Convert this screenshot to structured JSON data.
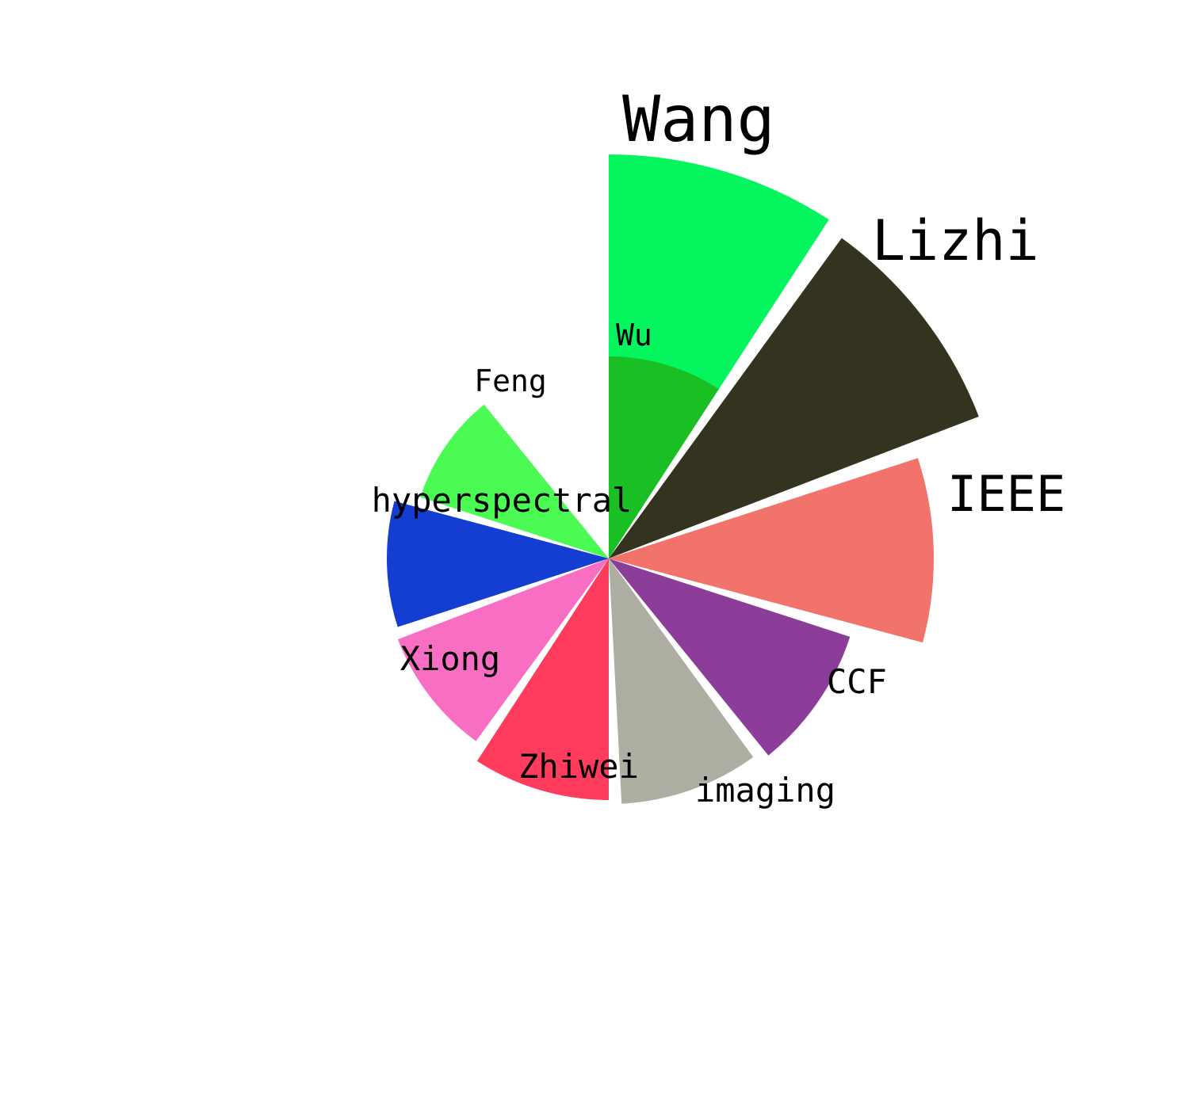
{
  "chart_data": {
    "type": "rose",
    "title": "",
    "direction": "clockwise",
    "start_angle_deg": 0,
    "radial_max": 510,
    "categories": [
      "Wang",
      "Lizhi",
      "IEEE",
      "CCF",
      "imaging",
      "Zhiwei",
      "Xiong",
      "hyperspectral",
      "Feng",
      "Wu"
    ],
    "values": [
      510,
      500,
      410,
      320,
      310,
      305,
      285,
      280,
      250,
      255
    ],
    "colors": [
      "#05f55f",
      "#33331f",
      "#f2736c",
      "#8c3d99",
      "#adada1",
      "#ff3b5e",
      "#f76ec2",
      "#143dd1",
      "#4bfa52",
      "#1abf24"
    ]
  }
}
